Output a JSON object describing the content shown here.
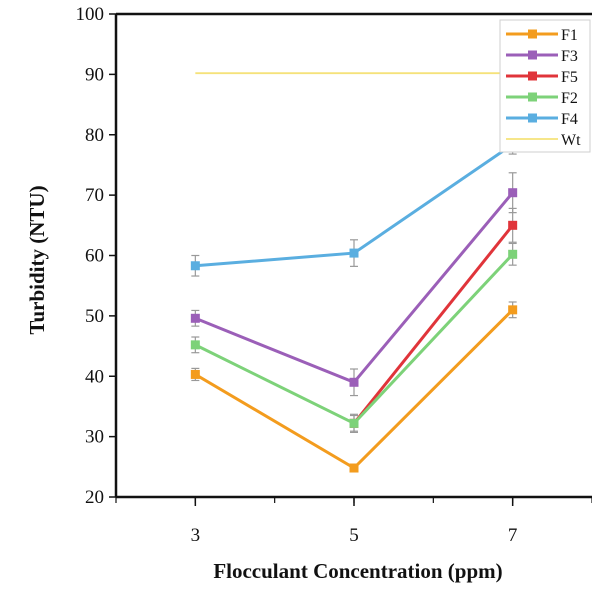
{
  "chart_data": {
    "type": "line",
    "title": "",
    "xlabel": "Flocculant Concentration (ppm)",
    "ylabel": "Turbidity (NTU)",
    "categories": [
      "3",
      "5",
      "7"
    ],
    "x": [
      3,
      5,
      7
    ],
    "xlim": [
      2,
      8
    ],
    "ylim": [
      20,
      100
    ],
    "yticks": [
      20,
      30,
      40,
      50,
      60,
      70,
      80,
      90,
      100
    ],
    "grid": false,
    "legend_position": "top-right",
    "series": [
      {
        "name": "F1",
        "color": "#f39c1e",
        "values": [
          40.3,
          24.8,
          51.0
        ],
        "errors": [
          1.0,
          0.6,
          1.3
        ]
      },
      {
        "name": "F3",
        "color": "#9b5fb8",
        "values": [
          49.6,
          39.0,
          70.4
        ],
        "errors": [
          1.3,
          2.2,
          3.3
        ]
      },
      {
        "name": "F5",
        "color": "#e0343a",
        "values": [
          null,
          32.2,
          65.0
        ],
        "errors": [
          null,
          1.3,
          2.8
        ]
      },
      {
        "name": "F2",
        "color": "#7dd279",
        "values": [
          45.2,
          32.2,
          60.2
        ],
        "errors": [
          1.3,
          1.5,
          1.8
        ]
      },
      {
        "name": "F4",
        "color": "#5aaee0",
        "values": [
          58.3,
          60.4,
          78.4
        ],
        "errors": [
          1.7,
          2.2,
          1.6
        ]
      },
      {
        "name": "Wt",
        "color": "#f5e27a",
        "values": [
          90.2,
          90.2,
          90.2
        ],
        "errors": null,
        "no_markers": true
      }
    ]
  }
}
